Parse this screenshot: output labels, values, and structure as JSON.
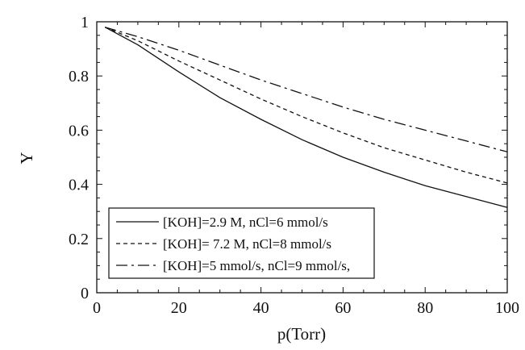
{
  "chart_data": {
    "type": "line",
    "xlabel": "p(Torr)",
    "ylabel": "Y",
    "xlim": [
      0,
      100
    ],
    "ylim": [
      0,
      1
    ],
    "x_ticks": [
      "0",
      "20",
      "40",
      "60",
      "80",
      "100"
    ],
    "y_ticks": [
      "0",
      "0.2",
      "0.4",
      "0.6",
      "0.8",
      "1"
    ],
    "grid": false,
    "legend_position": "bottom-left",
    "series": [
      {
        "name": "[KOH]=2.9 M, nCl=6 mmol/s",
        "style": "solid",
        "color": "#111111",
        "x": [
          2,
          10,
          20,
          30,
          40,
          50,
          60,
          70,
          80,
          90,
          100
        ],
        "y": [
          0.98,
          0.915,
          0.815,
          0.72,
          0.64,
          0.565,
          0.5,
          0.445,
          0.395,
          0.355,
          0.315
        ]
      },
      {
        "name": "[KOH]= 7.2 M, nCl=8 mmol/s",
        "style": "dashed",
        "color": "#111111",
        "x": [
          2,
          10,
          20,
          30,
          40,
          50,
          60,
          70,
          80,
          90,
          100
        ],
        "y": [
          0.98,
          0.93,
          0.855,
          0.785,
          0.715,
          0.65,
          0.59,
          0.535,
          0.49,
          0.445,
          0.405
        ]
      },
      {
        "name": "[KOH]=5 mmol/s, nCl=9 mmol/s,",
        "style": "dash-dot",
        "color": "#111111",
        "x": [
          2,
          10,
          20,
          30,
          40,
          50,
          60,
          70,
          80,
          90,
          100
        ],
        "y": [
          0.98,
          0.945,
          0.895,
          0.84,
          0.785,
          0.735,
          0.685,
          0.64,
          0.6,
          0.56,
          0.52
        ]
      }
    ]
  }
}
